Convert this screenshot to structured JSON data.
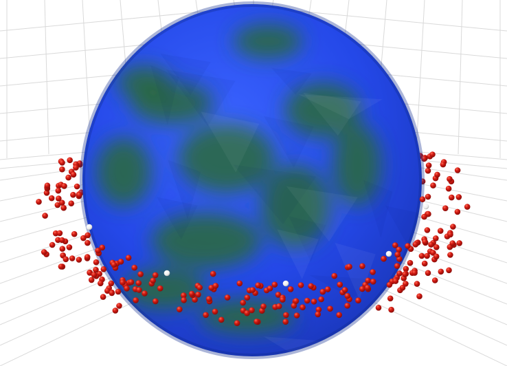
{
  "scene": {
    "background_color": "#ffffff",
    "grid_color": "#d9d9d9",
    "sphere": {
      "highlight_color": "#3a63ff",
      "base_color": "#2448e8",
      "rim_color": "#1a36b8",
      "land_color": "#2c6a3a"
    },
    "points": {
      "red_color": "#d21a12",
      "red_shade": "#8a0c08",
      "white_color": "#f4f4f4",
      "red_count": 420,
      "white_count": 5
    }
  }
}
